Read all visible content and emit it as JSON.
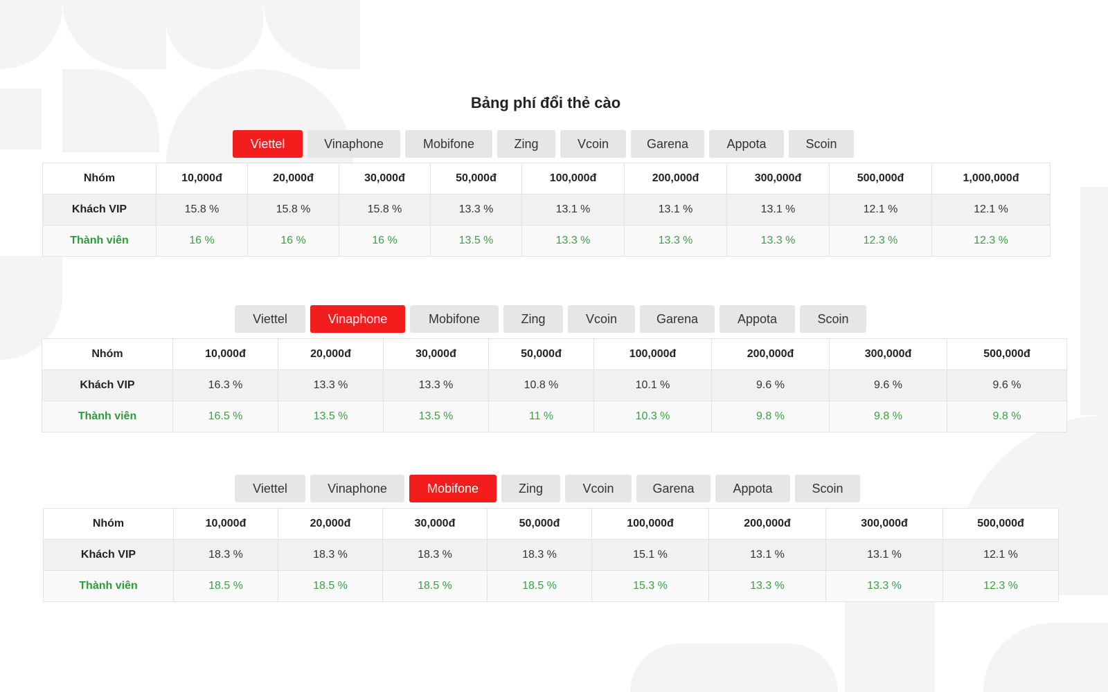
{
  "page": {
    "title": "Bảng phí đổi thẻ cào"
  },
  "colors": {
    "active_tab": "#f41d1d",
    "inactive_tab": "#e6e6e6",
    "member_text": "#3aa141",
    "vip_row_bg": "#f1f1f1"
  },
  "sections": [
    {
      "tabs": [
        {
          "label": "Viettel",
          "active": true
        },
        {
          "label": "Vinaphone",
          "active": false
        },
        {
          "label": "Mobifone",
          "active": false
        },
        {
          "label": "Zing",
          "active": false
        },
        {
          "label": "Vcoin",
          "active": false
        },
        {
          "label": "Garena",
          "active": false
        },
        {
          "label": "Appota",
          "active": false
        },
        {
          "label": "Scoin",
          "active": false
        }
      ],
      "header": [
        "Nhóm",
        "10,000đ",
        "20,000đ",
        "30,000đ",
        "50,000đ",
        "100,000đ",
        "200,000đ",
        "300,000đ",
        "500,000đ",
        "1,000,000đ"
      ],
      "rows": [
        {
          "label": "Khách VIP",
          "values": [
            "15.8 %",
            "15.8 %",
            "15.8 %",
            "13.3 %",
            "13.1 %",
            "13.1 %",
            "13.1 %",
            "12.1 %",
            "12.1 %"
          ]
        },
        {
          "label": "Thành viên",
          "values": [
            "16 %",
            "16 %",
            "16 %",
            "13.5 %",
            "13.3 %",
            "13.3 %",
            "13.3 %",
            "12.3 %",
            "12.3 %"
          ]
        }
      ]
    },
    {
      "tabs": [
        {
          "label": "Viettel",
          "active": false
        },
        {
          "label": "Vinaphone",
          "active": true
        },
        {
          "label": "Mobifone",
          "active": false
        },
        {
          "label": "Zing",
          "active": false
        },
        {
          "label": "Vcoin",
          "active": false
        },
        {
          "label": "Garena",
          "active": false
        },
        {
          "label": "Appota",
          "active": false
        },
        {
          "label": "Scoin",
          "active": false
        }
      ],
      "header": [
        "Nhóm",
        "10,000đ",
        "20,000đ",
        "30,000đ",
        "50,000đ",
        "100,000đ",
        "200,000đ",
        "300,000đ",
        "500,000đ"
      ],
      "rows": [
        {
          "label": "Khách VIP",
          "values": [
            "16.3 %",
            "13.3 %",
            "13.3 %",
            "10.8 %",
            "10.1 %",
            "9.6 %",
            "9.6 %",
            "9.6 %"
          ]
        },
        {
          "label": "Thành viên",
          "values": [
            "16.5 %",
            "13.5 %",
            "13.5 %",
            "11 %",
            "10.3 %",
            "9.8 %",
            "9.8 %",
            "9.8 %"
          ]
        }
      ]
    },
    {
      "tabs": [
        {
          "label": "Viettel",
          "active": false
        },
        {
          "label": "Vinaphone",
          "active": false
        },
        {
          "label": "Mobifone",
          "active": true
        },
        {
          "label": "Zing",
          "active": false
        },
        {
          "label": "Vcoin",
          "active": false
        },
        {
          "label": "Garena",
          "active": false
        },
        {
          "label": "Appota",
          "active": false
        },
        {
          "label": "Scoin",
          "active": false
        }
      ],
      "header": [
        "Nhóm",
        "10,000đ",
        "20,000đ",
        "30,000đ",
        "50,000đ",
        "100,000đ",
        "200,000đ",
        "300,000đ",
        "500,000đ"
      ],
      "rows": [
        {
          "label": "Khách VIP",
          "values": [
            "18.3 %",
            "18.3 %",
            "18.3 %",
            "18.3 %",
            "15.1 %",
            "13.1 %",
            "13.1 %",
            "12.1 %"
          ]
        },
        {
          "label": "Thành viên",
          "values": [
            "18.5 %",
            "18.5 %",
            "18.5 %",
            "18.5 %",
            "15.3 %",
            "13.3 %",
            "13.3 %",
            "12.3 %"
          ]
        }
      ]
    }
  ]
}
